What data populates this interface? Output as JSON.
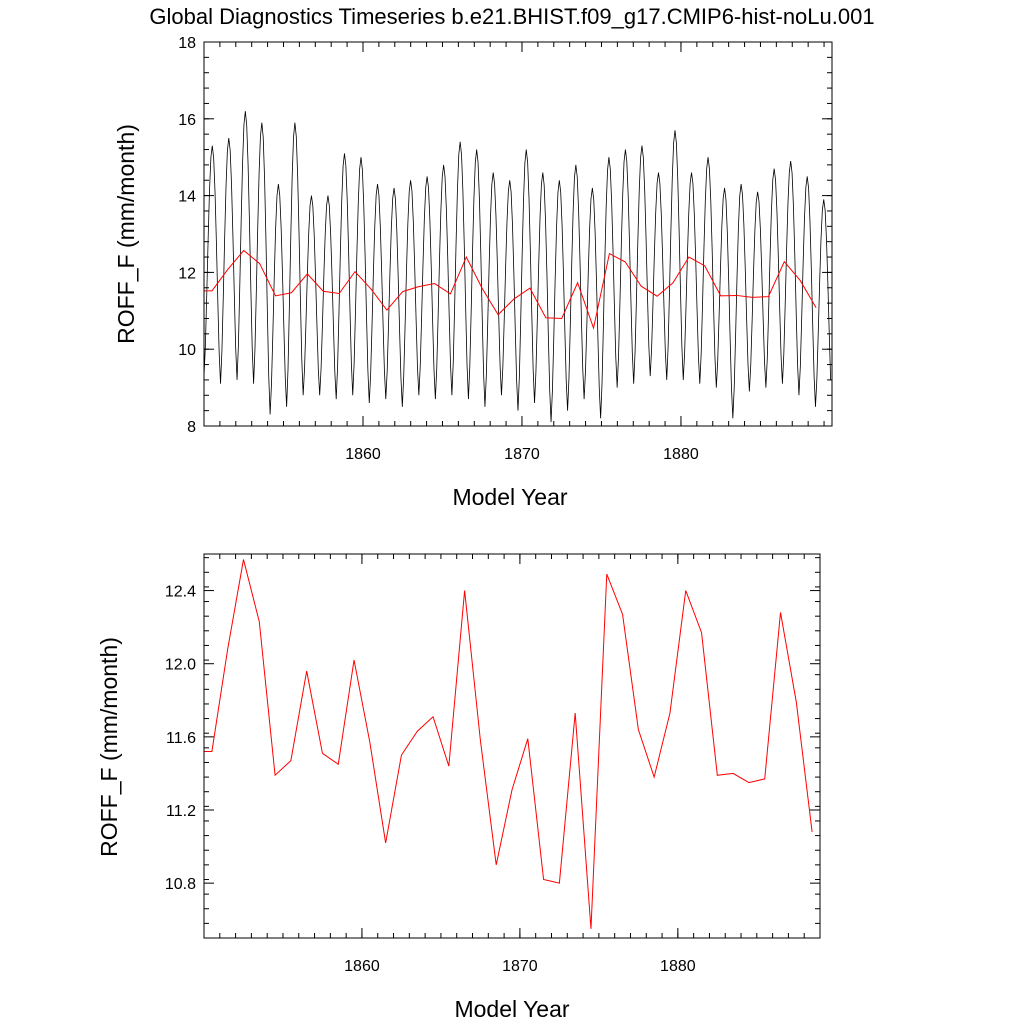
{
  "title": "Global Diagnostics Timeseries b.e21.BHIST.f09_g17.CMIP6-hist-noLu.001",
  "colors": {
    "monthly": "#000000",
    "annual": "#ff0000"
  },
  "chart_data": [
    {
      "type": "line",
      "xlabel": "Model Year",
      "ylabel": "ROFF_F (mm/month)",
      "xlim": [
        1850,
        1889.5
      ],
      "ylim": [
        8,
        18
      ],
      "xticks": [
        "1860",
        "1870",
        "1880"
      ],
      "xtick_values": [
        1860,
        1870,
        1880
      ],
      "yticks": [
        "8",
        "10",
        "12",
        "14",
        "16",
        "18"
      ],
      "ytick_values": [
        8,
        10,
        12,
        14,
        16,
        18
      ],
      "series": [
        {
          "style": "monthly",
          "monthly_peaks": [
            15.3,
            15.5,
            16.2,
            15.9,
            14.3,
            15.9,
            14.0,
            14.0,
            15.1,
            15.0,
            14.3,
            14.2,
            14.4,
            14.5,
            14.8,
            15.4,
            15.2,
            14.6,
            14.4,
            15.2,
            14.6,
            14.4,
            14.8,
            14.2,
            15.0,
            15.2,
            15.3,
            14.6,
            15.7,
            14.6,
            15.0,
            14.2,
            14.3,
            14.1,
            14.7,
            14.9,
            14.5,
            13.9
          ],
          "monthly_troughs": [
            9.3,
            9.1,
            9.2,
            9.1,
            8.3,
            8.5,
            8.8,
            8.8,
            8.7,
            8.8,
            8.6,
            8.7,
            8.5,
            8.8,
            8.7,
            8.8,
            8.7,
            8.5,
            8.8,
            8.4,
            8.6,
            8.1,
            8.4,
            8.7,
            8.2,
            9.0,
            9.1,
            9.3,
            9.2,
            9.2,
            9.1,
            9.0,
            8.2,
            8.9,
            9.0,
            9.1,
            8.8,
            8.5
          ]
        },
        {
          "style": "annual",
          "x": [
            1850.5,
            1851.5,
            1852.5,
            1853.5,
            1854.5,
            1855.5,
            1856.5,
            1857.5,
            1858.5,
            1859.5,
            1860.5,
            1861.5,
            1862.5,
            1863.5,
            1864.5,
            1865.5,
            1866.5,
            1867.5,
            1868.5,
            1869.5,
            1870.5,
            1871.5,
            1872.5,
            1873.5,
            1874.5,
            1875.5,
            1876.5,
            1877.5,
            1878.5,
            1879.5,
            1880.5,
            1881.5,
            1882.5,
            1883.5,
            1884.5,
            1885.5,
            1886.5,
            1887.5,
            1888.5
          ],
          "values": [
            11.52,
            12.08,
            12.57,
            12.23,
            11.39,
            11.47,
            11.96,
            11.51,
            11.45,
            12.02,
            11.57,
            11.02,
            11.5,
            11.63,
            11.71,
            11.44,
            12.4,
            11.58,
            10.9,
            11.31,
            11.59,
            10.82,
            10.8,
            11.73,
            10.55,
            12.49,
            12.27,
            11.64,
            11.38,
            11.73,
            12.4,
            12.17,
            11.39,
            11.4,
            11.35,
            11.37,
            12.28,
            11.79,
            11.08
          ]
        }
      ]
    },
    {
      "type": "line",
      "xlabel": "Model Year",
      "ylabel": "ROFF_F (mm/month)",
      "xlim": [
        1850,
        1889
      ],
      "ylim": [
        10.5,
        12.6
      ],
      "xticks": [
        "1860",
        "1870",
        "1880"
      ],
      "xtick_values": [
        1860,
        1870,
        1880
      ],
      "yticks": [
        "10.8",
        "11.2",
        "11.6",
        "12.0",
        "12.4"
      ],
      "ytick_values": [
        10.8,
        11.2,
        11.6,
        12.0,
        12.4
      ],
      "series": [
        {
          "style": "annual",
          "x": [
            1850.5,
            1851.5,
            1852.5,
            1853.5,
            1854.5,
            1855.5,
            1856.5,
            1857.5,
            1858.5,
            1859.5,
            1860.5,
            1861.5,
            1862.5,
            1863.5,
            1864.5,
            1865.5,
            1866.5,
            1867.5,
            1868.5,
            1869.5,
            1870.5,
            1871.5,
            1872.5,
            1873.5,
            1874.5,
            1875.5,
            1876.5,
            1877.5,
            1878.5,
            1879.5,
            1880.5,
            1881.5,
            1882.5,
            1883.5,
            1884.5,
            1885.5,
            1886.5,
            1887.5,
            1888.5
          ],
          "values": [
            11.52,
            12.08,
            12.57,
            12.23,
            11.39,
            11.47,
            11.96,
            11.51,
            11.45,
            12.02,
            11.57,
            11.02,
            11.5,
            11.63,
            11.71,
            11.44,
            12.4,
            11.58,
            10.9,
            11.31,
            11.59,
            10.82,
            10.8,
            11.73,
            10.55,
            12.49,
            12.27,
            11.64,
            11.38,
            11.73,
            12.4,
            12.17,
            11.39,
            11.4,
            11.35,
            11.37,
            12.28,
            11.79,
            11.08
          ]
        }
      ]
    }
  ]
}
